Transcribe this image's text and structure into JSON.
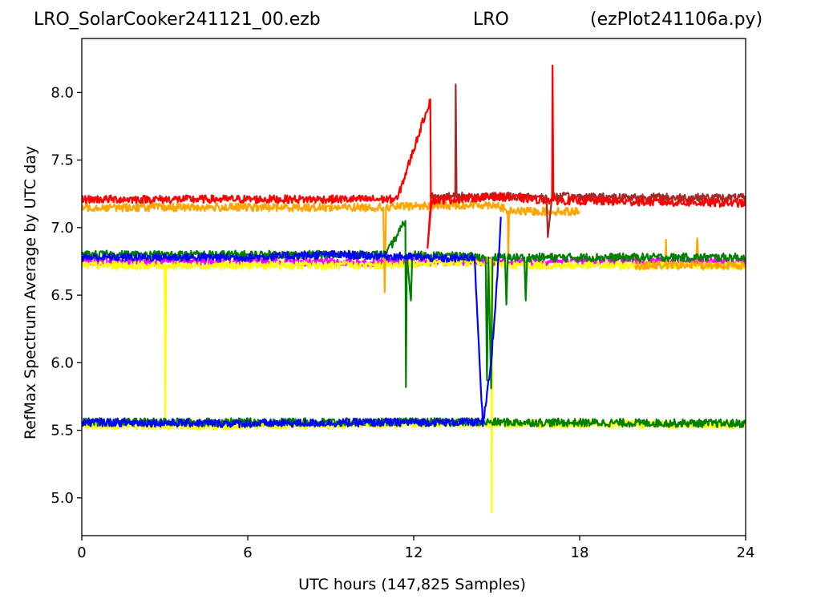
{
  "header": {
    "file_name": "LRO_SolarCooker241121_00.ezb",
    "station": "LRO",
    "script_name": "(ezPlot241106a.py)"
  },
  "chart_data": {
    "type": "line",
    "title": "LRO_SolarCooker241121_00.ezb    LRO    (ezPlot241106a.py)",
    "xlabel": "UTC hours  (147,825 Samples)",
    "ylabel": "RefMax Spectrum Average by UTC day",
    "xlim": [
      0,
      24
    ],
    "ylim": [
      4.72,
      8.4
    ],
    "x_ticks": [
      0,
      6,
      12,
      18,
      24
    ],
    "y_ticks": [
      5.0,
      5.5,
      6.0,
      6.5,
      7.0,
      7.5,
      8.0
    ],
    "x_tick_labels": [
      "0",
      "6",
      "12",
      "18",
      "24"
    ],
    "y_tick_labels": [
      "5.0",
      "5.5",
      "6.0",
      "6.5",
      "7.0",
      "7.5",
      "8.0"
    ],
    "grid": false,
    "legend": "none",
    "series": [
      {
        "color": "#ff00ff",
        "segments": [
          {
            "x": [
              0.0,
              6.0,
              11.0,
              13.5,
              18.0,
              24.0
            ],
            "y": [
              6.75,
              6.75,
              6.74,
              6.75,
              6.75,
              6.75
            ]
          }
        ]
      },
      {
        "color": "#ffff00",
        "segments": [
          {
            "x": [
              0.0,
              3.0,
              3.02,
              3.05,
              10.5,
              14.8,
              14.82,
              14.85,
              15.3,
              24.0
            ],
            "y": [
              6.72,
              6.72,
              5.6,
              6.72,
              6.72,
              6.75,
              4.89,
              6.75,
              6.72,
              6.72
            ]
          },
          {
            "x": [
              0.0,
              4.0,
              13.0,
              24.0
            ],
            "y": [
              5.54,
              5.53,
              5.55,
              5.54
            ]
          }
        ]
      },
      {
        "color": "#ffa500",
        "segments": [
          {
            "x": [
              0.0,
              6.0,
              10.9,
              10.95,
              11.0,
              12.0,
              15.0,
              15.4,
              15.42,
              15.45,
              18.0
            ],
            "y": [
              7.15,
              7.15,
              7.15,
              6.52,
              7.15,
              7.16,
              7.17,
              7.12,
              6.78,
              7.12,
              7.12
            ]
          },
          {
            "x": [
              20.0,
              21.1,
              21.12,
              21.15,
              22.2,
              22.25,
              22.3,
              24.0
            ],
            "y": [
              6.72,
              6.72,
              6.91,
              6.72,
              6.72,
              6.92,
              6.72,
              6.72
            ]
          }
        ]
      },
      {
        "color": "#a52a2a",
        "segments": [
          {
            "x": [
              12.6,
              13.5,
              13.52,
              13.55,
              16.8,
              16.85,
              17.0,
              24.0
            ],
            "y": [
              7.23,
              7.23,
              8.06,
              7.23,
              7.23,
              6.93,
              7.23,
              7.22
            ]
          }
        ]
      },
      {
        "color": "#ff0000",
        "segments": [
          {
            "x": [
              0.0,
              6.0,
              11.4,
              12.6,
              12.62,
              12.5,
              12.65,
              15.0,
              17.0,
              17.02,
              17.05,
              24.0
            ],
            "y": [
              7.21,
              7.21,
              7.21,
              7.95,
              7.2,
              6.85,
              7.2,
              7.23,
              7.2,
              8.2,
              7.2,
              7.18
            ]
          }
        ]
      },
      {
        "color": "#008000",
        "segments": [
          {
            "x": [
              0.0,
              6.0,
              11.0,
              11.7,
              11.72,
              11.75,
              11.9,
              11.95,
              12.0,
              14.6,
              14.65,
              14.7,
              14.8,
              14.85,
              14.9,
              15.3,
              15.35,
              15.4,
              16.0,
              16.05,
              16.1,
              24.0
            ],
            "y": [
              6.8,
              6.8,
              6.8,
              7.05,
              5.82,
              6.8,
              6.46,
              6.8,
              6.8,
              6.78,
              5.87,
              6.78,
              5.81,
              6.78,
              6.78,
              6.78,
              6.43,
              6.78,
              6.78,
              6.46,
              6.78,
              6.78
            ]
          },
          {
            "x": [
              0.0,
              14.8,
              24.0
            ],
            "y": [
              5.56,
              5.56,
              5.55
            ]
          }
        ]
      },
      {
        "color": "#0000ff",
        "segments": [
          {
            "x": [
              0.0,
              6.0,
              9.0,
              11.0,
              13.3
            ],
            "y": [
              6.78,
              6.78,
              6.8,
              6.79,
              6.77
            ]
          },
          {
            "x": [
              13.3,
              14.2,
              14.5,
              14.8,
              15.1,
              15.15
            ],
            "y": [
              6.77,
              6.78,
              5.53,
              6.0,
              6.86,
              7.08
            ]
          },
          {
            "x": [
              0.0,
              6.0,
              12.0,
              14.55
            ],
            "y": [
              5.56,
              5.55,
              5.56,
              5.56
            ]
          }
        ]
      }
    ]
  }
}
